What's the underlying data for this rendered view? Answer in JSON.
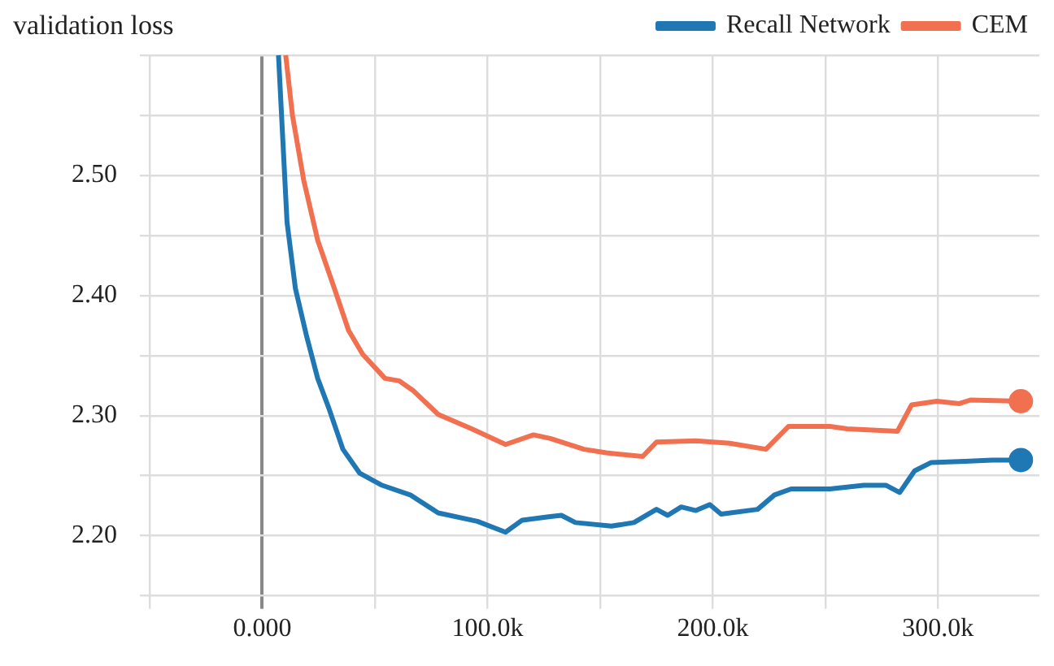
{
  "chart_data": {
    "type": "line",
    "title": "validation loss",
    "legend": "top right",
    "grid": true,
    "xlim": [
      -50000,
      345000
    ],
    "xticks": [
      {
        "value": -50000,
        "label": null
      },
      {
        "value": 0,
        "label": "0.000"
      },
      {
        "value": 50000,
        "label": null
      },
      {
        "value": 100000,
        "label": "100.0k"
      },
      {
        "value": 150000,
        "label": null
      },
      {
        "value": 200000,
        "label": "200.0k"
      },
      {
        "value": 250000,
        "label": null
      },
      {
        "value": 300000,
        "label": "300.0k"
      }
    ],
    "ylim": [
      2.15,
      2.6
    ],
    "yticks": [
      {
        "value": 2.15,
        "label": null
      },
      {
        "value": 2.2,
        "label": "2.20"
      },
      {
        "value": 2.25,
        "label": null
      },
      {
        "value": 2.3,
        "label": "2.30"
      },
      {
        "value": 2.35,
        "label": null
      },
      {
        "value": 2.4,
        "label": "2.40"
      },
      {
        "value": 2.45,
        "label": null
      },
      {
        "value": 2.5,
        "label": "2.50"
      },
      {
        "value": 2.55,
        "label": null
      },
      {
        "value": 2.6,
        "label": null
      }
    ],
    "series": [
      {
        "name": "Recall Network",
        "color": "#1f77b4",
        "x": [
          7200,
          11000,
          14700,
          19700,
          24600,
          29600,
          35800,
          43300,
          53200,
          65700,
          78100,
          95500,
          108000,
          115400,
          127900,
          132800,
          139000,
          155000,
          165000,
          175000,
          180000,
          186000,
          192500,
          198700,
          203700,
          219900,
          227400,
          234800,
          252000,
          267000,
          277000,
          283000,
          289600,
          297000,
          312000,
          324000,
          336800
        ],
        "values": [
          2.6,
          2.461,
          2.406,
          2.366,
          2.331,
          2.306,
          2.272,
          2.252,
          2.242,
          2.234,
          2.219,
          2.212,
          2.203,
          2.213,
          2.216,
          2.217,
          2.211,
          2.208,
          2.211,
          2.222,
          2.217,
          2.224,
          2.221,
          2.226,
          2.218,
          2.222,
          2.234,
          2.239,
          2.239,
          2.242,
          2.242,
          2.236,
          2.254,
          2.261,
          2.262,
          2.263,
          2.263
        ]
      },
      {
        "name": "CEM",
        "color": "#f0704f",
        "x": [
          10400,
          13400,
          18400,
          24600,
          32000,
          38300,
          44600,
          54500,
          60700,
          66900,
          78100,
          93000,
          108000,
          120400,
          127900,
          142800,
          152700,
          168900,
          175000,
          192500,
          207500,
          223600,
          233600,
          252000,
          259700,
          282000,
          288300,
          299500,
          309500,
          314400,
          336800
        ],
        "values": [
          2.6,
          2.55,
          2.496,
          2.446,
          2.406,
          2.371,
          2.351,
          2.331,
          2.329,
          2.321,
          2.301,
          2.289,
          2.276,
          2.284,
          2.281,
          2.272,
          2.269,
          2.266,
          2.278,
          2.279,
          2.277,
          2.272,
          2.291,
          2.291,
          2.289,
          2.287,
          2.309,
          2.312,
          2.31,
          2.313,
          2.312
        ]
      }
    ]
  }
}
